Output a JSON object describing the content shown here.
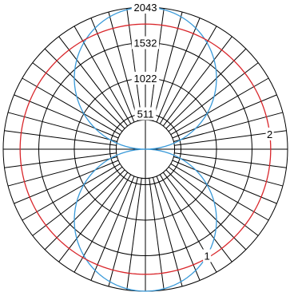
{
  "chart_data": {
    "type": "line",
    "subtype": "polar",
    "grid": true,
    "rlim": [
      0,
      2043
    ],
    "inner_hole_radius": 420,
    "radial_ticks": [
      "511",
      "1022",
      "1532",
      "2043"
    ],
    "radial_tick_values": [
      511,
      1022,
      1532,
      2043
    ],
    "angular_gridlines": 48,
    "series": [
      {
        "name": "1",
        "color": "#3a9ad9",
        "shape": "figure-eight",
        "theta_deg": [
          0,
          10,
          20,
          30,
          40,
          50,
          60,
          70,
          80,
          90,
          100,
          110,
          120,
          130,
          140,
          150,
          160,
          170,
          180,
          190,
          200,
          210,
          220,
          230,
          240,
          250,
          260,
          270,
          280,
          290,
          300,
          310,
          320,
          330,
          340,
          350
        ],
        "r": [
          2043,
          2012,
          1920,
          1769,
          1565,
          1313,
          1022,
          699,
          355,
          0,
          355,
          699,
          1022,
          1313,
          1565,
          1769,
          1920,
          2012,
          2043,
          2012,
          1920,
          1769,
          1565,
          1313,
          1022,
          699,
          355,
          0,
          355,
          699,
          1022,
          1313,
          1565,
          1769,
          1920,
          2012
        ]
      },
      {
        "name": "2",
        "color": "#d9262b",
        "shape": "circle",
        "theta_deg": [
          0,
          30,
          60,
          90,
          120,
          150,
          180,
          210,
          240,
          270,
          300,
          330
        ],
        "r": [
          1800,
          1800,
          1800,
          1800,
          1800,
          1800,
          1800,
          1800,
          1800,
          1800,
          1800,
          1800
        ]
      }
    ],
    "series_labels": [
      {
        "text": "1",
        "series": "1",
        "theta_deg": 150
      },
      {
        "text": "2",
        "series": "2",
        "theta_deg": 83
      }
    ]
  }
}
